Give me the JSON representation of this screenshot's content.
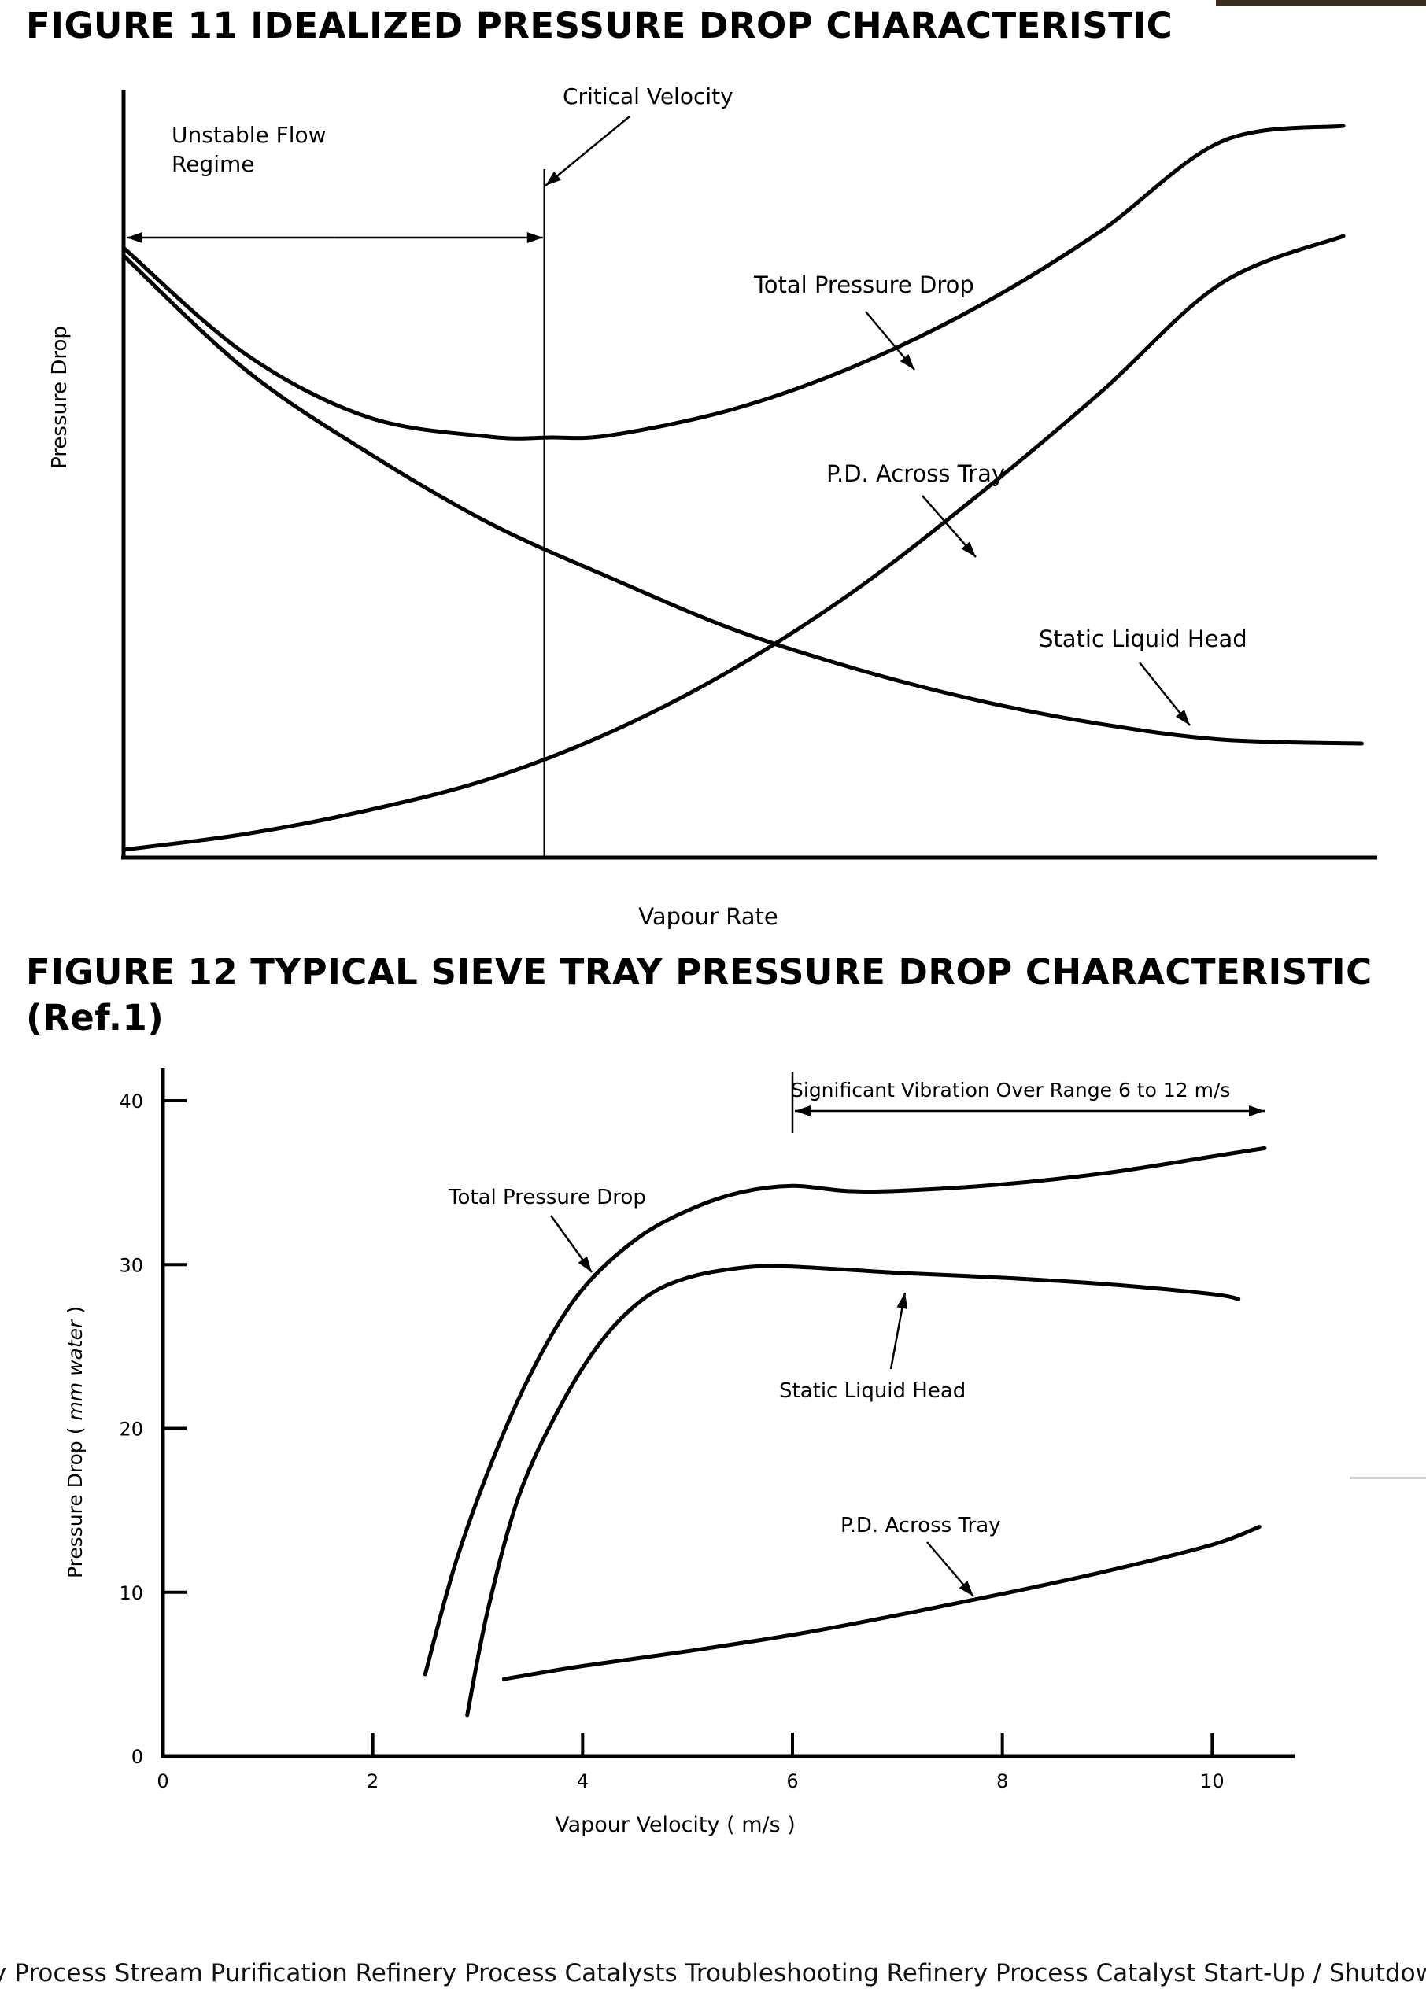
{
  "figure11": {
    "title": "FIGURE 11   IDEALIZED PRESSURE DROP CHARACTERISTIC",
    "chart_data": {
      "type": "line",
      "xlabel": "Vapour Rate",
      "ylabel": "Pressure Drop",
      "xlim": [
        0,
        10
      ],
      "ylim": [
        0,
        10
      ],
      "grid": false,
      "series": [
        {
          "name": "Total Pressure Drop",
          "x": [
            0,
            1,
            2,
            3,
            3.5,
            4,
            5,
            6,
            7,
            8,
            9,
            10
          ],
          "y": [
            7.75,
            6.4,
            5.6,
            5.35,
            5.34,
            5.37,
            5.7,
            6.25,
            7.0,
            7.95,
            9.1,
            9.3
          ]
        },
        {
          "name": "P.D. Across Tray",
          "x": [
            0,
            1,
            2,
            3,
            4,
            5,
            6,
            7,
            8,
            9,
            10
          ],
          "y": [
            0.1,
            0.3,
            0.6,
            1.0,
            1.6,
            2.4,
            3.4,
            4.6,
            5.9,
            7.3,
            7.9
          ]
        },
        {
          "name": "Static Liquid Head",
          "x": [
            0,
            1,
            2,
            3,
            4,
            5,
            6,
            7,
            8,
            9,
            10.15
          ],
          "y": [
            7.65,
            6.2,
            5.15,
            4.25,
            3.55,
            2.9,
            2.4,
            2.0,
            1.7,
            1.5,
            1.45
          ]
        }
      ],
      "annotations": {
        "critical_velocity": {
          "label": "Critical Velocity",
          "x": 3.45
        },
        "unstable_flow": {
          "label": "Unstable Flow Regime",
          "x_range": [
            0,
            3.45
          ]
        }
      }
    }
  },
  "figure12": {
    "title": "FIGURE 12  TYPICAL SIEVE TRAY PRESSURE DROP CHARACTERISTIC (Ref.1)",
    "chart_data": {
      "type": "line",
      "xlabel": "Vapour Velocity ( m/s )",
      "ylabel_prefix": "Pressure Drop  ( ",
      "ylabel_unit": "mm water",
      "ylabel_suffix": " )",
      "xlim": [
        0,
        10.8
      ],
      "ylim": [
        0,
        42.5
      ],
      "xticks": [
        0,
        2,
        4,
        6,
        8,
        10
      ],
      "yticks": [
        0,
        10,
        20,
        30,
        40
      ],
      "grid": false,
      "series": [
        {
          "name": "Total Pressure Drop",
          "x": [
            2.5,
            2.8,
            3.2,
            3.6,
            4.0,
            4.5,
            5.0,
            5.5,
            6.0,
            6.5,
            7.0,
            8.0,
            9.0,
            10.0,
            10.5
          ],
          "y": [
            5,
            12,
            19,
            24.5,
            28.5,
            31.5,
            33.3,
            34.4,
            34.8,
            34.5,
            34.5,
            34.9,
            35.6,
            36.6,
            37.1
          ]
        },
        {
          "name": "Static Liquid Head",
          "x": [
            2.9,
            3.1,
            3.4,
            3.8,
            4.2,
            4.6,
            5.0,
            5.5,
            5.9,
            6.5,
            7.0,
            8.0,
            9.0,
            10.0,
            10.25
          ],
          "y": [
            2.5,
            9,
            16,
            21.5,
            25.5,
            28,
            29.2,
            29.8,
            29.9,
            29.7,
            29.5,
            29.2,
            28.8,
            28.2,
            27.9
          ]
        },
        {
          "name": "P.D. Across Tray",
          "x": [
            3.25,
            4,
            5,
            6,
            7,
            8,
            9,
            10,
            10.45
          ],
          "y": [
            4.7,
            5.5,
            6.4,
            7.4,
            8.6,
            9.9,
            11.3,
            12.9,
            14.0
          ]
        }
      ],
      "annotations": {
        "vibration": {
          "label": "Significant Vibration Over Range 6 to 12 m/s",
          "x_range": [
            6,
            10.5
          ]
        }
      }
    }
  },
  "footer": {
    "text": "y Process Stream Purification Refinery Process Catalysts Troubleshooting Refinery Process Catalyst Start-Up / Shutdown"
  }
}
